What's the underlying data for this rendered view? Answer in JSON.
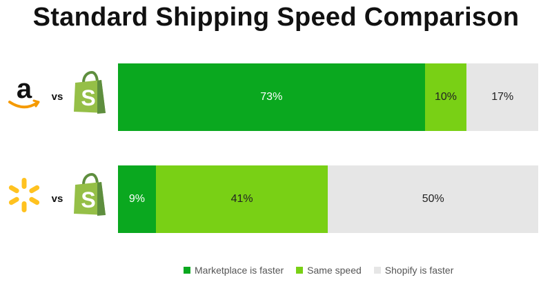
{
  "chart_data": {
    "type": "bar",
    "orientation": "horizontal",
    "stacked": true,
    "normalized": "percent",
    "title": "Standard Shipping Speed Comparison",
    "categories": [
      "Amazon vs Shopify",
      "Walmart vs Shopify"
    ],
    "series": [
      {
        "name": "Marketplace is faster",
        "color": "#0aa81f",
        "values": [
          73,
          9
        ],
        "labels": [
          "73%",
          "9%"
        ]
      },
      {
        "name": "Same speed",
        "color": "#79d015",
        "values": [
          10,
          41
        ],
        "labels": [
          "10%",
          "41%"
        ]
      },
      {
        "name": "Shopify is faster",
        "color": "#e6e6e6",
        "values": [
          17,
          50
        ],
        "labels": [
          "17%",
          "50%"
        ]
      }
    ],
    "rows": [
      {
        "marketplace_icon": "amazon-logo",
        "vs_label": "vs",
        "platform_icon": "shopify-logo"
      },
      {
        "marketplace_icon": "walmart-spark-logo",
        "vs_label": "vs",
        "platform_icon": "shopify-logo"
      }
    ],
    "legend_position": "bottom",
    "grid": false
  }
}
